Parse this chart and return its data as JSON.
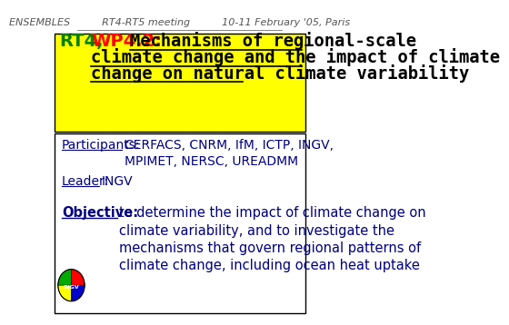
{
  "bg_color": "#FFFF00",
  "header_text": "ENSEMBLES          RT4-RT5 meeting          10-11 February '05, Paris",
  "header_color": "#555555",
  "header_fontsize": 8,
  "rt4_text": "RT4,",
  "rt4_color": "#008000",
  "wp_text": "WP4.2:",
  "wp_color": "#FF0000",
  "title_line1": "Mechanisms of regional-scale",
  "title_line2": "climate change and the impact of climate",
  "title_line3": "change on natural climate variability",
  "title_color": "#000000",
  "title_fontsize": 13.5,
  "participants_label": "Participants:",
  "participants_line1": "CERFACS, CNRM, IfM, ICTP, INGV,",
  "participants_line2": "MPIMET, NERSC, UREADMM",
  "participants_color": "#000080",
  "participants_fontsize": 10,
  "leader_label": "Leader:",
  "leader_text": "INGV",
  "leader_color": "#000080",
  "leader_fontsize": 10,
  "objective_label": "Objective:",
  "objective_line1": "to determine the impact of climate change on",
  "objective_line2": "climate variability, and to investigate the",
  "objective_line3": "mechanisms that govern regional patterns of",
  "objective_line4": "climate change, including ocean heat uptake",
  "objective_color": "#000080",
  "objective_fontsize": 10.5
}
